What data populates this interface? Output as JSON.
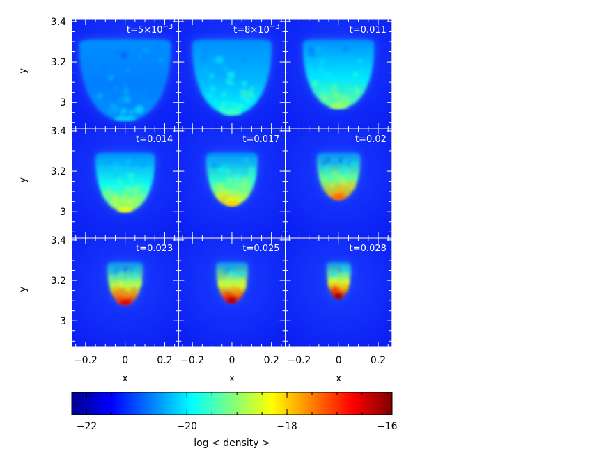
{
  "chart_data": {
    "type": "heatmap",
    "layout": {
      "rows": 3,
      "cols": 3
    },
    "xlabel": "x",
    "ylabel": "y",
    "xlim": [
      -0.27,
      0.27
    ],
    "ylim": [
      2.87,
      3.41
    ],
    "xticks": [
      -0.2,
      0,
      0.2
    ],
    "xtick_labels": [
      "−0.2",
      "0",
      "0.2"
    ],
    "yticks": [
      3.0,
      3.2,
      3.4
    ],
    "ytick_labels": [
      "3",
      "3.2",
      "3.4"
    ],
    "panels": [
      {
        "label": "t=5×10",
        "label_sup": "−3",
        "top_y": 3.31,
        "bottom_y": 2.91,
        "half_width": 0.23,
        "peak_log_density": -20.2
      },
      {
        "label": "t=8×10",
        "label_sup": "−3",
        "top_y": 3.31,
        "bottom_y": 2.94,
        "half_width": 0.2,
        "peak_log_density": -19.5
      },
      {
        "label": "t=0.011",
        "label_sup": "",
        "top_y": 3.31,
        "bottom_y": 2.97,
        "half_width": 0.18,
        "peak_log_density": -18.9
      },
      {
        "label": "t=0.014",
        "label_sup": "",
        "top_y": 3.29,
        "bottom_y": 3.0,
        "half_width": 0.15,
        "peak_log_density": -18.4
      },
      {
        "label": "t=0.017",
        "label_sup": "",
        "top_y": 3.29,
        "bottom_y": 3.03,
        "half_width": 0.13,
        "peak_log_density": -18.0
      },
      {
        "label": "t=0.02",
        "label_sup": "",
        "top_y": 3.29,
        "bottom_y": 3.06,
        "half_width": 0.11,
        "peak_log_density": -17.3
      },
      {
        "label": "t=0.023",
        "label_sup": "",
        "top_y": 3.29,
        "bottom_y": 3.08,
        "half_width": 0.09,
        "peak_log_density": -16.5
      },
      {
        "label": "t=0.025",
        "label_sup": "",
        "top_y": 3.29,
        "bottom_y": 3.09,
        "half_width": 0.08,
        "peak_log_density": -16.2
      },
      {
        "label": "t=0.028",
        "label_sup": "",
        "top_y": 3.29,
        "bottom_y": 3.11,
        "half_width": 0.06,
        "peak_log_density": -16.0
      }
    ],
    "colorbar": {
      "label": "log < density >",
      "range": [
        -22.3,
        -15.9
      ],
      "ticks": [
        -22,
        -20,
        -18,
        -16
      ],
      "tick_labels": [
        "−22",
        "−20",
        "−18",
        "−16"
      ],
      "colormap": [
        "#00008f",
        "#0000ff",
        "#00ffff",
        "#ffff00",
        "#ff0000",
        "#800000"
      ]
    },
    "background_log_density": -21.0,
    "grid": false
  }
}
